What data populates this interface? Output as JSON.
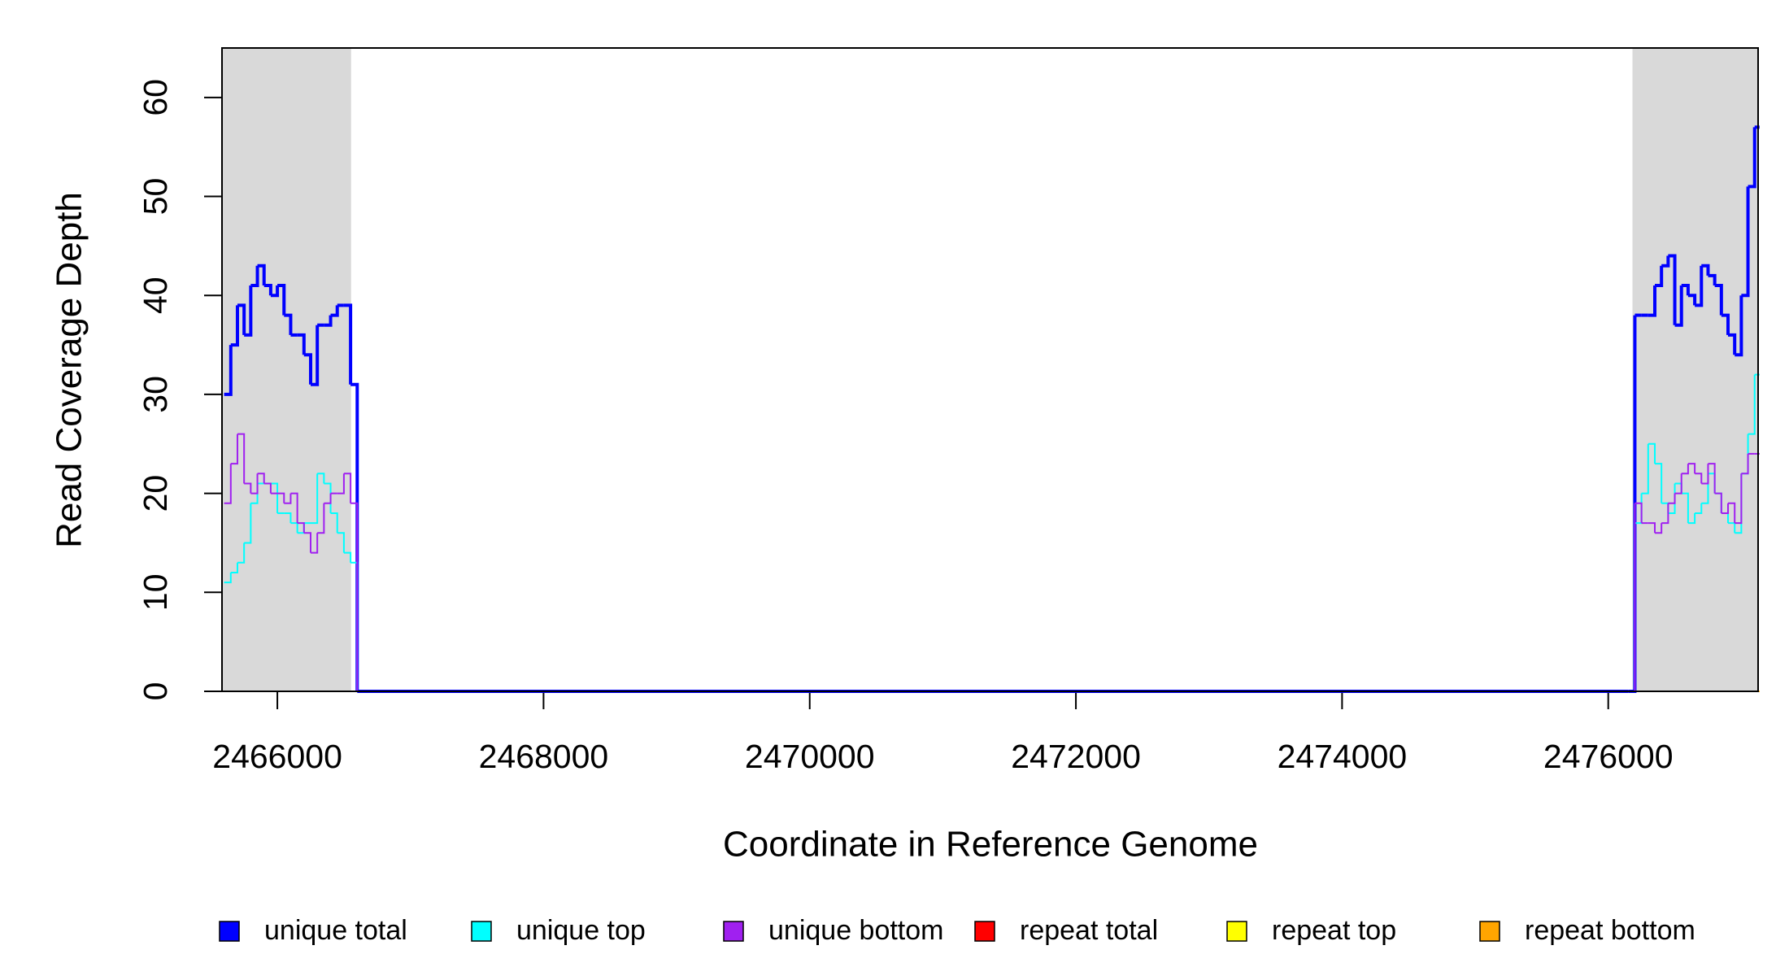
{
  "chart_data": {
    "type": "line",
    "step": true,
    "x_label": "Coordinate in Reference Genome",
    "y_label": "Read Coverage Depth",
    "xlim": [
      2465584,
      2477126
    ],
    "ylim": [
      0,
      65
    ],
    "xticks": [
      2466000,
      2468000,
      2470000,
      2472000,
      2474000,
      2476000
    ],
    "yticks": [
      0,
      10,
      20,
      30,
      40,
      50,
      60
    ],
    "shaded_regions": [
      [
        2465584,
        2466554
      ],
      [
        2476182,
        2477126
      ]
    ],
    "shade_color": "#d9d9d9",
    "x": [
      2465600,
      2465650,
      2465700,
      2465750,
      2465800,
      2465850,
      2465900,
      2465950,
      2466000,
      2466050,
      2466100,
      2466150,
      2466200,
      2466250,
      2466300,
      2466350,
      2466400,
      2466450,
      2466500,
      2466550,
      2466600,
      2476150,
      2476200,
      2476250,
      2476300,
      2476350,
      2476400,
      2476450,
      2476500,
      2476550,
      2476600,
      2476650,
      2476700,
      2476750,
      2476800,
      2476850,
      2476900,
      2476950,
      2477000,
      2477050,
      2477100
    ],
    "series": [
      {
        "name": "unique total",
        "color": "#0000ff",
        "values": [
          30,
          35,
          39,
          36,
          41,
          43,
          41,
          40,
          41,
          38,
          36,
          36,
          34,
          31,
          37,
          37,
          38,
          39,
          39,
          31,
          0,
          0,
          38,
          38,
          38,
          41,
          43,
          44,
          37,
          41,
          40,
          39,
          43,
          42,
          41,
          38,
          36,
          34,
          40,
          51,
          57
        ]
      },
      {
        "name": "unique top",
        "color": "#00ffff",
        "values": [
          11,
          12,
          13,
          15,
          19,
          21,
          21,
          21,
          18,
          18,
          17,
          16,
          17,
          17,
          22,
          21,
          18,
          16,
          14,
          13,
          0,
          0,
          17,
          20,
          25,
          23,
          19,
          18,
          21,
          20,
          17,
          18,
          19,
          22,
          20,
          18,
          17,
          16,
          22,
          26,
          32
        ]
      },
      {
        "name": "unique bottom",
        "color": "#a020f0",
        "values": [
          19,
          23,
          26,
          21,
          20,
          22,
          21,
          20,
          20,
          19,
          20,
          17,
          16,
          14,
          16,
          19,
          20,
          20,
          22,
          19,
          0,
          0,
          19,
          17,
          17,
          16,
          17,
          19,
          20,
          22,
          23,
          22,
          21,
          23,
          20,
          18,
          19,
          17,
          22,
          24,
          24
        ]
      },
      {
        "name": "repeat total",
        "color": "#ff0000",
        "values": [
          0,
          0,
          0,
          0,
          0,
          0,
          0,
          0,
          0,
          0,
          0,
          0,
          0,
          0,
          0,
          0,
          0,
          0,
          0,
          0,
          0,
          0,
          0,
          0,
          0,
          0,
          0,
          0,
          0,
          0,
          0,
          0,
          0,
          0,
          0,
          0,
          0,
          0,
          0,
          0,
          0
        ]
      },
      {
        "name": "repeat top",
        "color": "#ffff00",
        "values": [
          0,
          0,
          0,
          0,
          0,
          0,
          0,
          0,
          0,
          0,
          0,
          0,
          0,
          0,
          0,
          0,
          0,
          0,
          0,
          0,
          0,
          0,
          0,
          0,
          0,
          0,
          0,
          0,
          0,
          0,
          0,
          0,
          0,
          0,
          0,
          0,
          0,
          0,
          0,
          0,
          0
        ]
      },
      {
        "name": "repeat bottom",
        "color": "#ffa500",
        "values": [
          0,
          0,
          0,
          0,
          0,
          0,
          0,
          0,
          0,
          0,
          0,
          0,
          0,
          0,
          0,
          0,
          0,
          0,
          0,
          0,
          0,
          0,
          0,
          0,
          0,
          0,
          0,
          0,
          0,
          0,
          0,
          0,
          0,
          0,
          0,
          0,
          0,
          0,
          0,
          0,
          0
        ]
      }
    ]
  }
}
